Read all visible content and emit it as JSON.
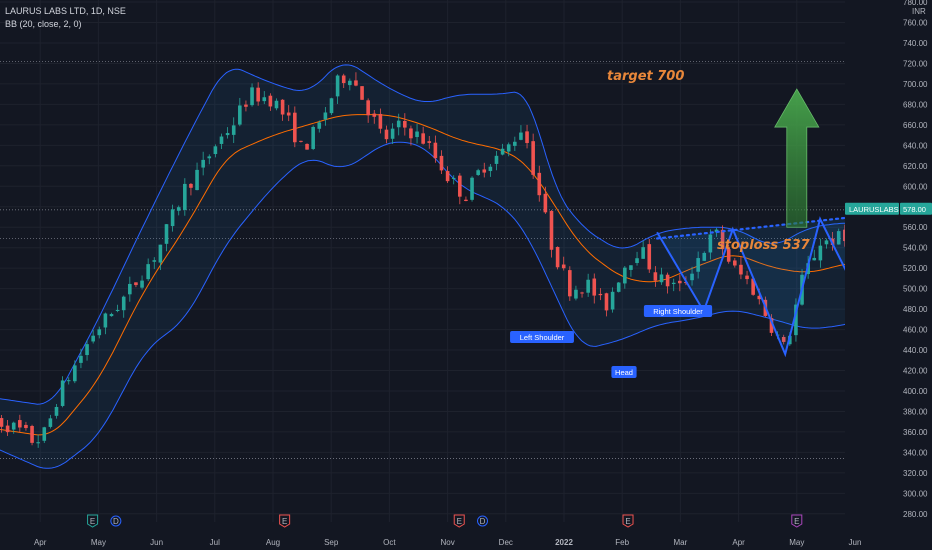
{
  "header": {
    "symbol_line": "LAURUS LABS LTD, 1D, NSE",
    "indicator_line": "BB (20, close, 2, 0)"
  },
  "price_axis": {
    "currency_top": "INR",
    "currency_partial": "780.00"
  },
  "current_price": {
    "ticker": "LAURUSLABS",
    "value": "578.00",
    "color": "#26a69a"
  },
  "annotations": {
    "target": "target 700",
    "stoploss": "stoploss 537",
    "left_shoulder": "Left Shoulder",
    "head": "Head",
    "right_shoulder": "Right Shoulder"
  },
  "events": [
    {
      "letter": "E",
      "month_pos": 1.9,
      "type": "earnings-green"
    },
    {
      "letter": "D",
      "month_pos": 2.3,
      "type": "dividend"
    },
    {
      "letter": "E",
      "month_pos": 5.2,
      "type": "earnings"
    },
    {
      "letter": "E",
      "month_pos": 8.2,
      "type": "earnings"
    },
    {
      "letter": "D",
      "month_pos": 8.6,
      "type": "dividend"
    },
    {
      "letter": "E",
      "month_pos": 11.1,
      "type": "earnings"
    },
    {
      "letter": "E",
      "month_pos": 14.0,
      "type": "earnings-future"
    }
  ],
  "colors": {
    "background": "#131722",
    "up": "#26a69a",
    "down": "#ef5350",
    "band": "#2962ff",
    "basis": "#ff6d00",
    "pattern": "#2962ff",
    "arrow": "#388e3c",
    "annotation": "#e8873a"
  },
  "chart_data": {
    "type": "candlestick",
    "title": "LAURUS LABS LTD, 1D, NSE",
    "indicator": "BB (20, close, 2, 0)",
    "x_ticks": [
      "Apr",
      "May",
      "Jun",
      "Jul",
      "Aug",
      "Sep",
      "Oct",
      "Nov",
      "Dec",
      "2022",
      "Feb",
      "Mar",
      "Apr",
      "May",
      "Jun"
    ],
    "y_ticks": [
      780,
      760,
      740,
      720,
      700,
      680,
      660,
      640,
      620,
      600,
      580,
      560,
      540,
      520,
      500,
      480,
      460,
      440,
      420,
      400,
      380,
      360,
      340,
      320,
      300,
      280
    ],
    "ylim": [
      272,
      782
    ],
    "y_unit": "INR",
    "horizontal_levels": [
      722,
      577,
      549,
      334
    ],
    "price_path": [
      [
        0.0,
        375
      ],
      [
        0.4,
        368
      ],
      [
        0.7,
        360
      ],
      [
        0.9,
        350
      ],
      [
        1.1,
        360
      ],
      [
        1.3,
        395
      ],
      [
        1.6,
        425
      ],
      [
        1.9,
        455
      ],
      [
        2.2,
        475
      ],
      [
        2.5,
        495
      ],
      [
        2.8,
        520
      ],
      [
        3.0,
        535
      ],
      [
        3.2,
        560
      ],
      [
        3.5,
        600
      ],
      [
        3.8,
        620
      ],
      [
        4.0,
        640
      ],
      [
        4.3,
        660
      ],
      [
        4.6,
        690
      ],
      [
        5.0,
        685
      ],
      [
        5.3,
        660
      ],
      [
        5.5,
        635
      ],
      [
        5.8,
        660
      ],
      [
        6.1,
        700
      ],
      [
        6.3,
        712
      ],
      [
        6.6,
        680
      ],
      [
        6.9,
        645
      ],
      [
        7.2,
        660
      ],
      [
        7.6,
        645
      ],
      [
        8.0,
        610
      ],
      [
        8.3,
        590
      ],
      [
        8.6,
        620
      ],
      [
        9.0,
        635
      ],
      [
        9.3,
        660
      ],
      [
        9.5,
        610
      ],
      [
        9.8,
        540
      ],
      [
        10.1,
        500
      ],
      [
        10.4,
        505
      ],
      [
        10.7,
        480
      ],
      [
        11.0,
        520
      ],
      [
        11.3,
        540
      ],
      [
        11.6,
        510
      ],
      [
        12.0,
        500
      ],
      [
        12.3,
        530
      ],
      [
        12.6,
        555
      ],
      [
        12.9,
        520
      ],
      [
        13.2,
        505
      ],
      [
        13.6,
        460
      ],
      [
        13.8,
        440
      ],
      [
        14.1,
        510
      ],
      [
        14.4,
        545
      ],
      [
        14.8,
        550
      ],
      [
        15.1,
        505
      ],
      [
        15.5,
        530
      ],
      [
        15.9,
        545
      ],
      [
        16.2,
        580
      ]
    ],
    "bollinger": {
      "period": 20,
      "stddev": 2,
      "upper": [
        [
          0,
          395
        ],
        [
          1.2,
          385
        ],
        [
          2,
          470
        ],
        [
          2.8,
          565
        ],
        [
          3.5,
          645
        ],
        [
          4.2,
          720
        ],
        [
          5,
          700
        ],
        [
          5.6,
          690
        ],
        [
          6.2,
          725
        ],
        [
          7,
          695
        ],
        [
          7.6,
          680
        ],
        [
          8.2,
          690
        ],
        [
          9,
          690
        ],
        [
          9.4,
          695
        ],
        [
          9.8,
          600
        ],
        [
          10.3,
          560
        ],
        [
          11,
          535
        ],
        [
          11.6,
          555
        ],
        [
          12.2,
          560
        ],
        [
          12.9,
          560
        ],
        [
          13.6,
          540
        ],
        [
          14.2,
          560
        ],
        [
          14.9,
          565
        ],
        [
          15.5,
          560
        ],
        [
          16.2,
          575
        ]
      ],
      "basis": [
        [
          0,
          365
        ],
        [
          1.2,
          355
        ],
        [
          2,
          410
        ],
        [
          2.8,
          500
        ],
        [
          3.5,
          560
        ],
        [
          4.2,
          630
        ],
        [
          5,
          650
        ],
        [
          5.6,
          660
        ],
        [
          6.2,
          670
        ],
        [
          7,
          670
        ],
        [
          7.6,
          660
        ],
        [
          8.2,
          645
        ],
        [
          9,
          635
        ],
        [
          9.4,
          620
        ],
        [
          9.8,
          585
        ],
        [
          10.3,
          540
        ],
        [
          11,
          510
        ],
        [
          11.6,
          505
        ],
        [
          12.2,
          520
        ],
        [
          12.9,
          535
        ],
        [
          13.6,
          520
        ],
        [
          14.2,
          515
        ],
        [
          14.9,
          525
        ],
        [
          15.5,
          530
        ],
        [
          16.2,
          540
        ]
      ],
      "lower": [
        [
          0,
          350
        ],
        [
          1.2,
          320
        ],
        [
          2,
          355
        ],
        [
          2.8,
          440
        ],
        [
          3.5,
          470
        ],
        [
          4.2,
          545
        ],
        [
          5,
          600
        ],
        [
          5.6,
          630
        ],
        [
          6.2,
          615
        ],
        [
          7,
          645
        ],
        [
          7.6,
          640
        ],
        [
          8.2,
          600
        ],
        [
          9,
          580
        ],
        [
          9.4,
          550
        ],
        [
          9.8,
          500
        ],
        [
          10.3,
          440
        ],
        [
          11,
          450
        ],
        [
          11.6,
          465
        ],
        [
          12.2,
          470
        ],
        [
          12.9,
          480
        ],
        [
          13.6,
          470
        ],
        [
          14.2,
          460
        ],
        [
          14.9,
          465
        ],
        [
          15.5,
          480
        ],
        [
          16.2,
          510
        ]
      ]
    },
    "pattern": {
      "name": "inverse head and shoulders",
      "zigzag": [
        [
          11.6,
          555
        ],
        [
          12.4,
          478
        ],
        [
          12.9,
          558
        ],
        [
          13.8,
          436
        ],
        [
          14.4,
          568
        ],
        [
          15.0,
          500
        ],
        [
          15.8,
          550
        ]
      ],
      "neckline": [
        [
          11.6,
          549
        ],
        [
          16.1,
          577
        ]
      ],
      "target": 700,
      "stoploss": 537
    },
    "last_price": 578.0
  }
}
